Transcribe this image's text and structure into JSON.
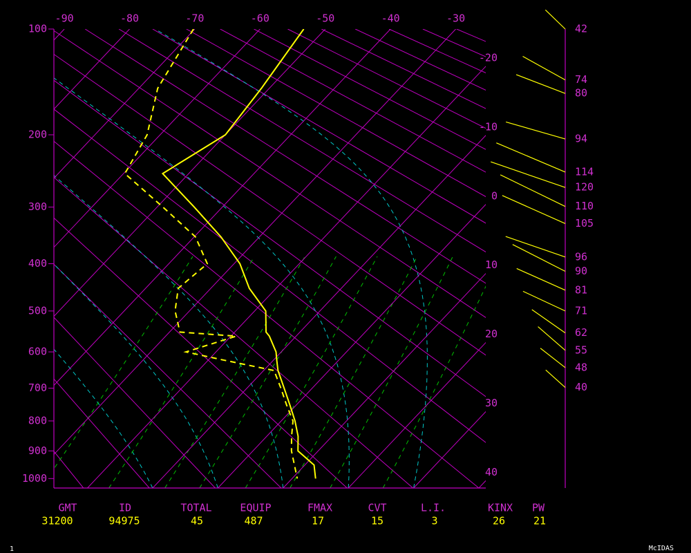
{
  "chart_data": {
    "type": "skew-t",
    "ylim": [
      100,
      1036
    ],
    "yticks": [
      100,
      200,
      300,
      400,
      500,
      600,
      700,
      800,
      900,
      1000
    ],
    "xlim": [
      -91.6,
      -25.4
    ],
    "xticks": [
      -90,
      -80,
      -70,
      -60,
      -50,
      -40,
      -30
    ],
    "isotherm_labels": [
      -20,
      -10,
      0,
      10,
      20,
      30,
      40
    ],
    "levels": [
      100,
      150,
      200,
      250,
      300,
      350,
      400,
      450,
      500,
      550,
      560,
      600,
      620,
      650,
      700,
      750,
      800,
      850,
      900,
      950,
      1000
    ],
    "series": [
      {
        "color": "#ffff00",
        "dashed": false,
        "values": [
          -53.3,
          -51.2,
          -50.0,
          -54.0,
          -44.3,
          -35.9,
          -29.1,
          -24.1,
          -18.3,
          -15.2,
          -14.1,
          -10.8,
          -9.6,
          -7.8,
          -4.3,
          -1.0,
          2.1,
          4.8,
          6.9,
          11.4,
          13.6
        ]
      },
      {
        "color": "#ffff00",
        "dashed": true,
        "values": [
          -70.2,
          -67.1,
          -62.0,
          -59.8,
          -49.1,
          -39.8,
          -34.1,
          -35.0,
          -32.2,
          -28.4,
          -19.2,
          -24.6,
          -18.2,
          -8.4,
          -4.8,
          -1.5,
          1.8,
          3.8,
          5.9,
          8.4,
          10.8
        ]
      }
    ],
    "wind": {
      "color": "#ffff00",
      "levels": [
        100,
        142,
        155,
        205,
        248,
        270,
        299,
        327,
        387,
        415,
        454,
        500,
        552,
        596,
        642,
        698
      ],
      "speeds": [
        42,
        74,
        80,
        94,
        114,
        120,
        110,
        105,
        96,
        90,
        81,
        71,
        62,
        55,
        48,
        40
      ],
      "directions": [
        314,
        299,
        291,
        286,
        293,
        289,
        296,
        294,
        289,
        297,
        294,
        295,
        305,
        311,
        308,
        312
      ]
    },
    "stats": [
      {
        "label": "GMT",
        "value": 31200
      },
      {
        "label": "ID",
        "value": 94975
      },
      {
        "label": "TOTAL",
        "value": 45
      },
      {
        "label": "EQUIP",
        "value": 487
      },
      {
        "label": "FMAX",
        "value": 17
      },
      {
        "label": "CVT",
        "value": 15
      },
      {
        "label": "L.I.",
        "value": 3
      },
      {
        "label": "KINX",
        "value": 26
      },
      {
        "label": "PW",
        "value": 21
      }
    ]
  },
  "page": {
    "frame_number": "1",
    "software": "McIDAS"
  }
}
